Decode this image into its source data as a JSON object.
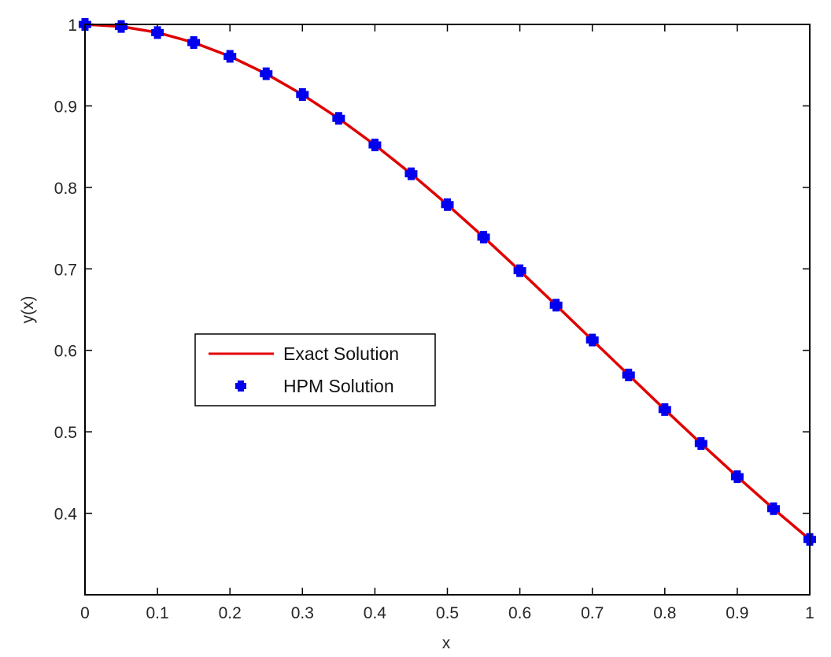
{
  "chart_data": {
    "type": "line",
    "title": "",
    "xlabel": "x",
    "ylabel": "y(x)",
    "xlim": [
      0,
      1
    ],
    "ylim": [
      0.3,
      1
    ],
    "grid": false,
    "legend_position": "center-left",
    "x_ticks": [
      0,
      0.1,
      0.2,
      0.3,
      0.4,
      0.5,
      0.6,
      0.7,
      0.8,
      0.9,
      1
    ],
    "x_tick_labels": [
      "0",
      "0.1",
      "0.2",
      "0.3",
      "0.4",
      "0.5",
      "0.6",
      "0.7",
      "0.8",
      "0.9",
      "1"
    ],
    "y_ticks": [
      0.4,
      0.5,
      0.6,
      0.7,
      0.8,
      0.9,
      1
    ],
    "y_tick_labels": [
      "0.4",
      "0.5",
      "0.6",
      "0.7",
      "0.8",
      "0.9",
      "1"
    ],
    "x": [
      0,
      0.05,
      0.1,
      0.15,
      0.2,
      0.25,
      0.3,
      0.35,
      0.4,
      0.45,
      0.5,
      0.55,
      0.6,
      0.65,
      0.7,
      0.75,
      0.8,
      0.85,
      0.9,
      0.95,
      1
    ],
    "series": [
      {
        "name": "Exact Solution",
        "style": "line",
        "color": "#e00000",
        "values": [
          1.0,
          0.9975,
          0.99,
          0.9778,
          0.9608,
          0.9394,
          0.9139,
          0.8847,
          0.8521,
          0.8167,
          0.7788,
          0.739,
          0.6977,
          0.6554,
          0.6126,
          0.5698,
          0.5273,
          0.4856,
          0.4449,
          0.4056,
          0.3679
        ]
      },
      {
        "name": "HPM Solution",
        "style": "marker",
        "marker": "filled-plus",
        "color": "#0000ee",
        "values": [
          1.0,
          0.9975,
          0.99,
          0.9778,
          0.9608,
          0.9394,
          0.9139,
          0.8847,
          0.8521,
          0.8167,
          0.7788,
          0.739,
          0.6977,
          0.6554,
          0.6126,
          0.5698,
          0.5273,
          0.4856,
          0.4449,
          0.4056,
          0.3679
        ]
      }
    ]
  },
  "legend": {
    "items": [
      {
        "label": "Exact Solution",
        "color": "#e00000"
      },
      {
        "label": "HPM Solution",
        "color": "#0000ee"
      }
    ]
  }
}
